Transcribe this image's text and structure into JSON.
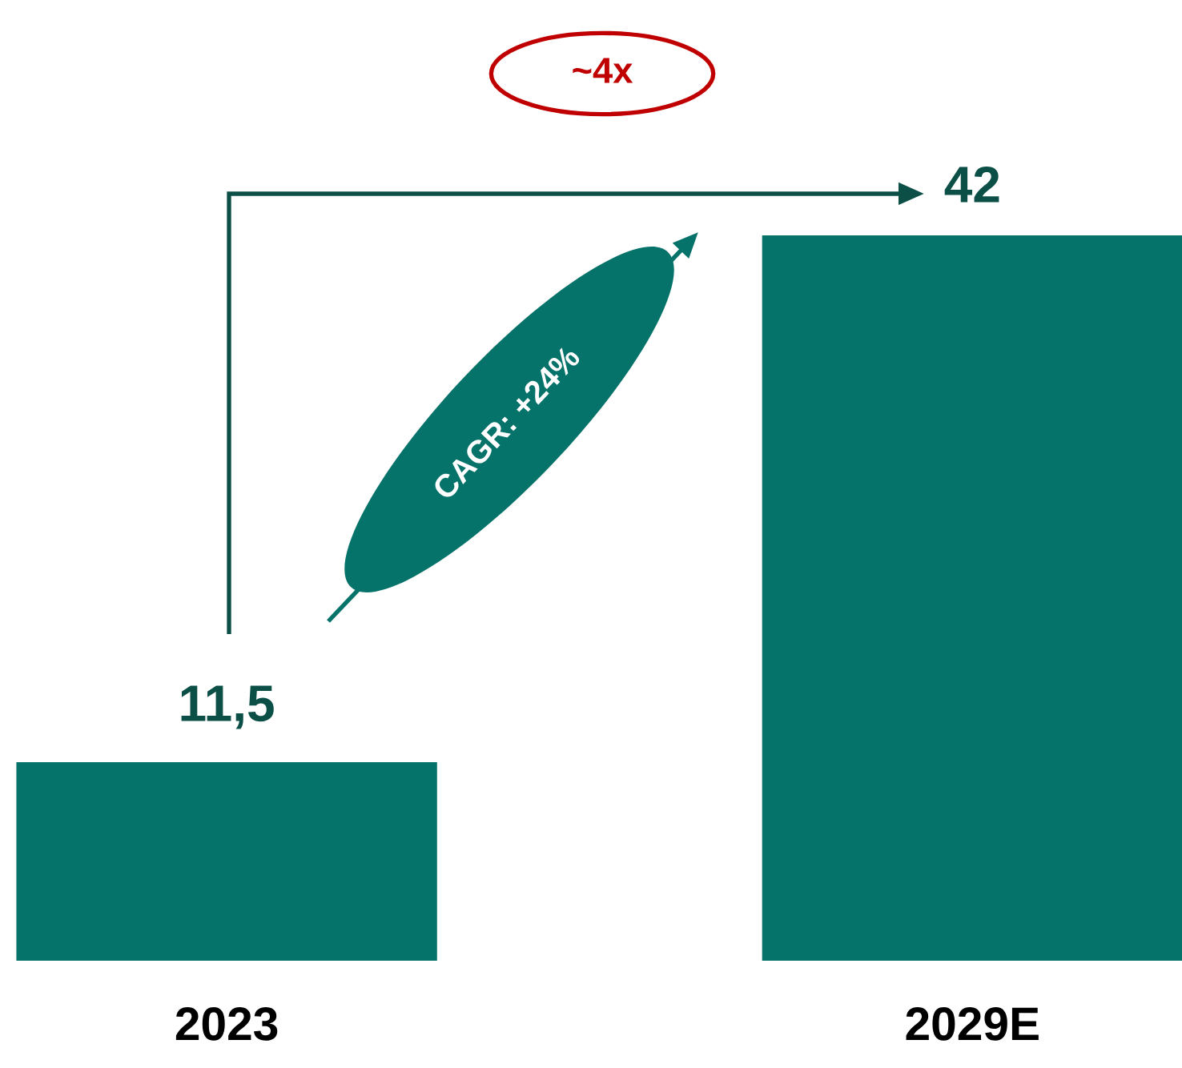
{
  "chart_data": {
    "type": "bar",
    "categories": [
      "2023",
      "2029E"
    ],
    "values": [
      11.5,
      42
    ],
    "color": "#06736a",
    "value_labels": [
      "11,5",
      "42"
    ],
    "tick_labels": "x",
    "annotations": [
      "~4x",
      "CAGR: +24%"
    ]
  }
}
